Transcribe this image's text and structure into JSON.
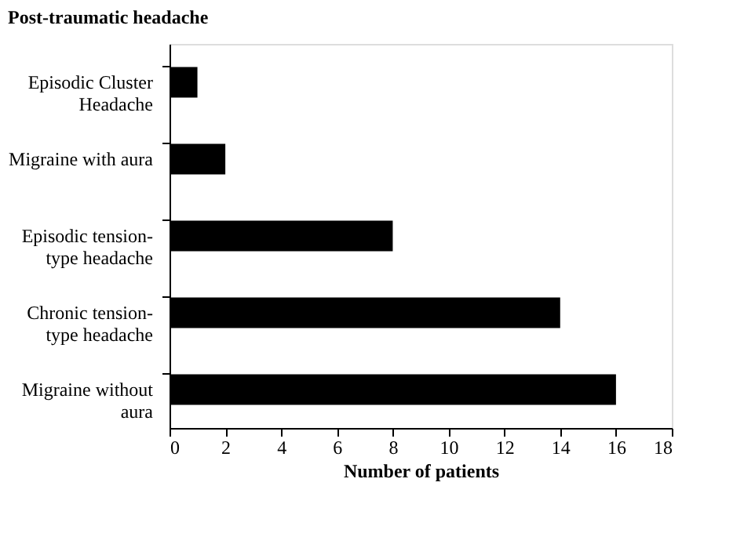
{
  "chart_data": {
    "type": "bar",
    "orientation": "horizontal",
    "title": "Post-traumatic headache",
    "xlabel": "Number of patients",
    "categories": [
      "Episodic Cluster\nHeadache",
      "Migraine with aura",
      "Episodic tension-\ntype headache",
      "Chronic tension-\ntype headache",
      "Migraine without\naura"
    ],
    "values": [
      1,
      2,
      8,
      14,
      16
    ],
    "color": "#000000",
    "xlim": [
      0,
      18
    ],
    "xticks": [
      0,
      2,
      4,
      6,
      8,
      10,
      12,
      14,
      16,
      18
    ],
    "grid": false
  }
}
